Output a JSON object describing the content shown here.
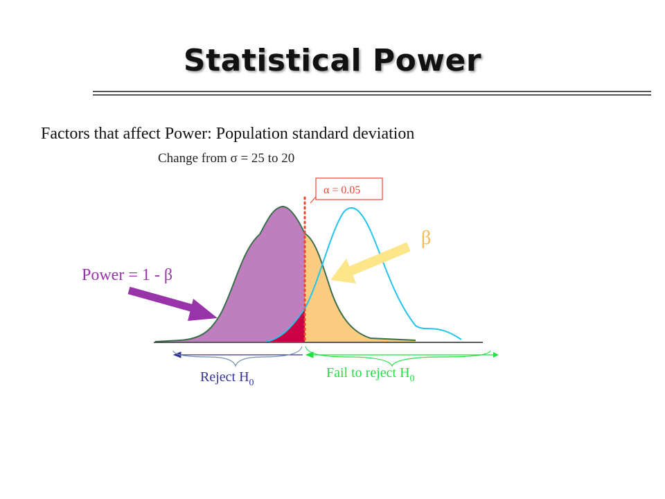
{
  "slide": {
    "title": "Statistical Power",
    "subtitle": "Factors that affect Power:  Population standard deviation",
    "change_note": "Change from σ = 25 to 20"
  },
  "diagram": {
    "alpha_label": "α = 0.05",
    "beta_label": "β",
    "power_label": "Power = 1 - β",
    "reject_label": "Reject H",
    "reject_subscript": "0",
    "fail_label": "Fail to reject H",
    "fail_subscript": "0"
  },
  "colors": {
    "power_fill": "#bf7fbf",
    "beta_fill": "#fccc80",
    "alpha_fill": "#cc0044",
    "alt_curve": "#22c4ee",
    "power_arrow": "#9933aa",
    "beta_arrow": "#fde68a",
    "alpha_marker": "#ee4433",
    "reject_bracket": "#333399",
    "fail_bracket": "#22dd44"
  }
}
